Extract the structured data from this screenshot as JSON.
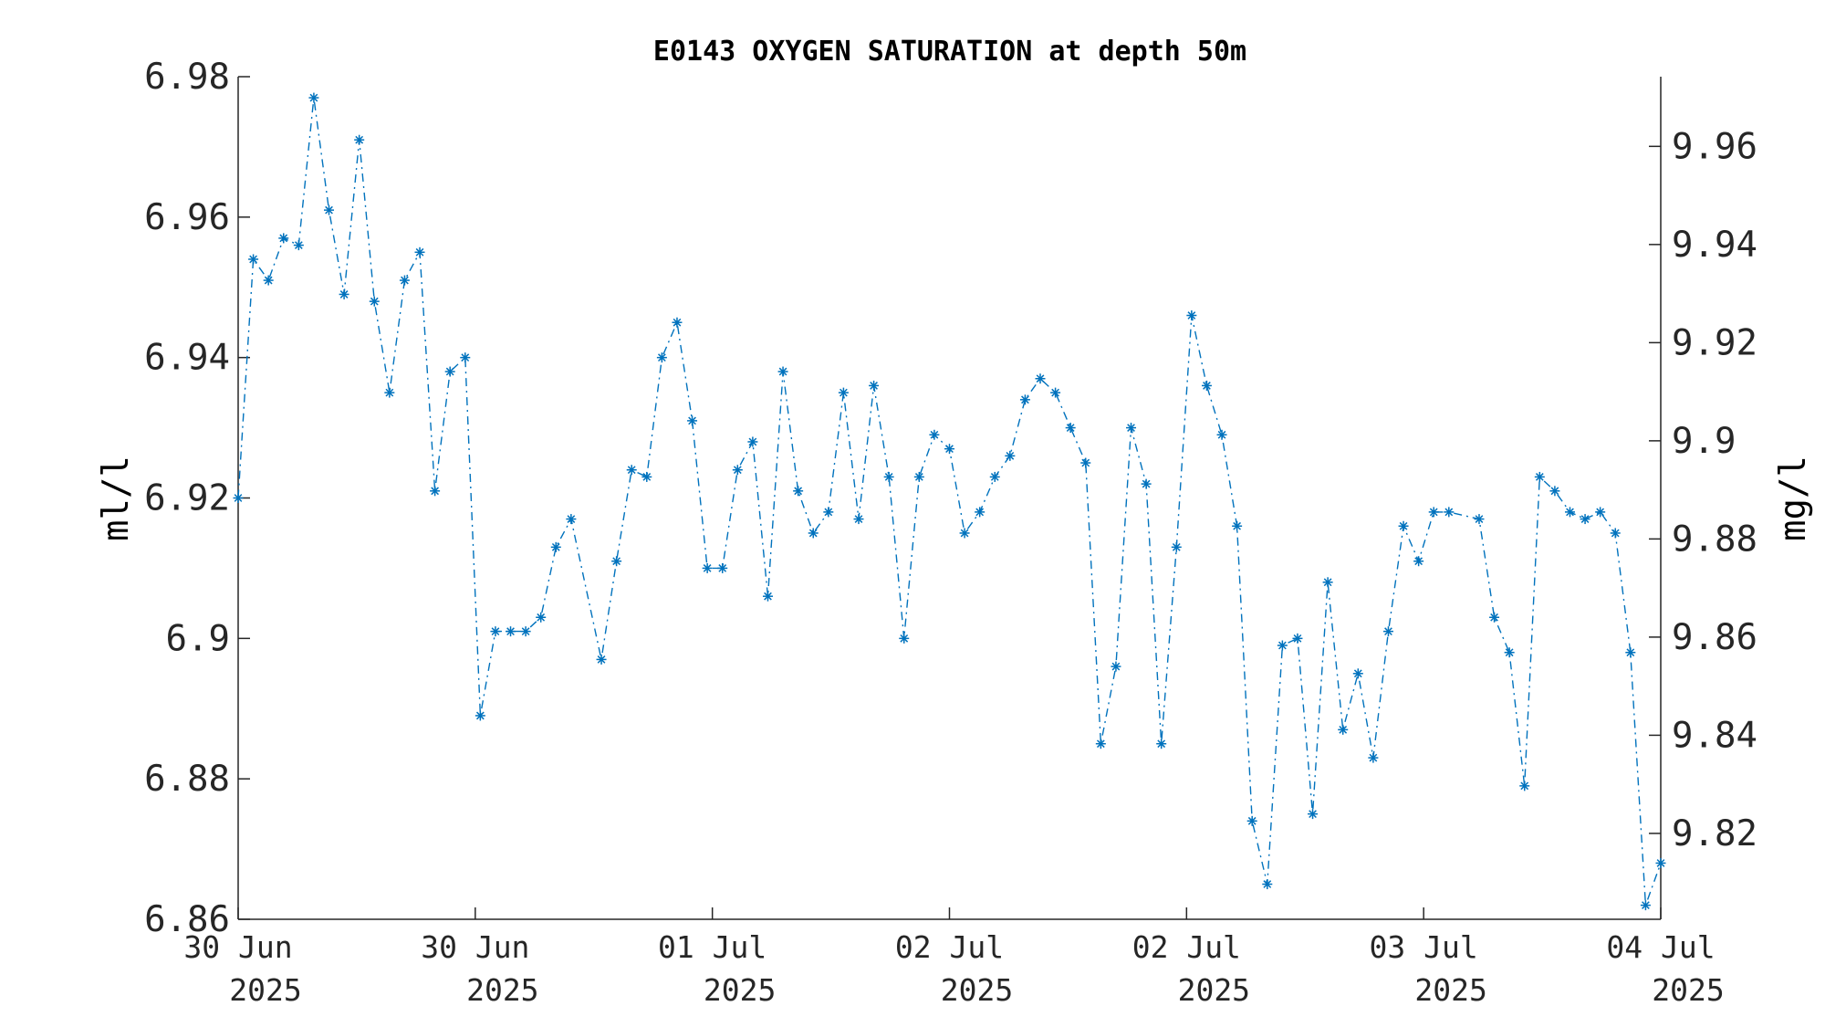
{
  "chart_data": {
    "type": "line",
    "title": "E0143 OXYGEN SATURATION at depth 50m",
    "ylabel_left": "ml/l",
    "ylabel_right": "mg/l",
    "ylim_left": [
      6.86,
      6.98
    ],
    "yticks_left": [
      "6.86",
      "6.88",
      "6.9",
      "6.92",
      "6.94",
      "6.96",
      "6.98"
    ],
    "yticks_left_values": [
      6.86,
      6.88,
      6.9,
      6.92,
      6.94,
      6.96,
      6.98
    ],
    "ylim_right": [
      9.8025,
      9.9742
    ],
    "yticks_right": [
      "9.82",
      "9.84",
      "9.86",
      "9.88",
      "9.9",
      "9.92",
      "9.94",
      "9.96"
    ],
    "yticks_right_values": [
      9.82,
      9.84,
      9.86,
      9.88,
      9.9,
      9.92,
      9.94,
      9.96
    ],
    "xticks": [
      {
        "day": "30 Jun",
        "year": "2025"
      },
      {
        "day": "30 Jun",
        "year": "2025"
      },
      {
        "day": "01 Jul",
        "year": "2025"
      },
      {
        "day": "02 Jul",
        "year": "2025"
      },
      {
        "day": "02 Jul",
        "year": "2025"
      },
      {
        "day": "03 Jul",
        "year": "2025"
      },
      {
        "day": "04 Jul",
        "year": "2025"
      }
    ],
    "series": [
      {
        "color": "#0072BD",
        "marker": "asterisk",
        "line_style": "dash-dot",
        "values": [
          6.92,
          6.954,
          6.951,
          6.957,
          6.956,
          6.977,
          6.961,
          6.949,
          6.971,
          6.948,
          6.935,
          6.951,
          6.955,
          6.921,
          6.938,
          6.94,
          6.889,
          6.901,
          6.901,
          6.901,
          6.903,
          6.913,
          6.917,
          null,
          6.897,
          6.911,
          6.924,
          6.923,
          6.94,
          6.945,
          6.931,
          6.91,
          6.91,
          6.924,
          6.928,
          6.906,
          6.938,
          6.921,
          6.915,
          6.918,
          6.935,
          6.917,
          6.936,
          6.923,
          6.9,
          6.923,
          6.929,
          6.927,
          6.915,
          6.918,
          6.923,
          6.926,
          6.934,
          6.937,
          6.935,
          6.93,
          6.925,
          6.885,
          6.896,
          6.93,
          6.922,
          6.885,
          6.913,
          6.946,
          6.936,
          6.929,
          6.916,
          6.874,
          6.865,
          6.899,
          6.9,
          6.875,
          6.908,
          6.887,
          6.895,
          6.883,
          6.901,
          6.916,
          6.911,
          6.918,
          6.918,
          null,
          6.917,
          6.903,
          6.898,
          6.879,
          6.923,
          6.921,
          6.918,
          6.917,
          6.918,
          6.915,
          6.898,
          6.862,
          6.868
        ]
      }
    ]
  }
}
